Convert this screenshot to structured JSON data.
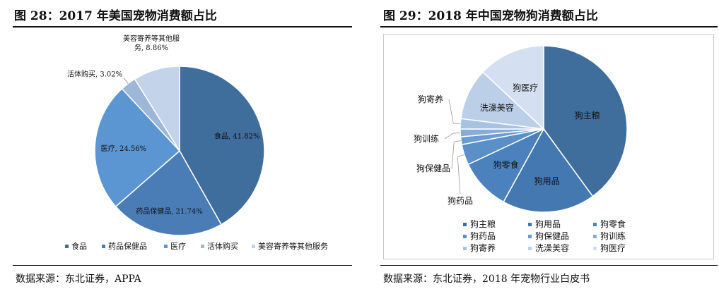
{
  "left": {
    "title": "图 28：2017 年美国宠物消费额占比",
    "source": "数据来源：东北证券，APPA",
    "chart_data": {
      "type": "pie",
      "title": "",
      "legend_position": "bottom",
      "slices": [
        {
          "name": "食品",
          "label": "食品, 41.82%",
          "value": 41.82,
          "color": "#3f6d9c"
        },
        {
          "name": "药品保健品",
          "label": "药品保健品, 21.74%",
          "value": 21.74,
          "color": "#4a7db6"
        },
        {
          "name": "医疗",
          "label": "医疗, 24.56%",
          "value": 24.56,
          "color": "#5b96d2"
        },
        {
          "name": "活体购买",
          "label": "活体购买, 3.02%",
          "value": 3.02,
          "color": "#9db7d8"
        },
        {
          "name": "美容寄养等其他服务",
          "label_line1": "美容寄养等其他服",
          "label_line2": "务, 8.86%",
          "value": 8.86,
          "color": "#c3d3ea"
        }
      ]
    }
  },
  "right": {
    "title": "图 29：2018 年中国宠物狗消费额占比",
    "source": "数据来源：东北证券，2018 年宠物行业白皮书",
    "chart_data": {
      "type": "pie",
      "title": "",
      "legend_position": "bottom",
      "slices": [
        {
          "name": "狗主粮",
          "value": 40.0,
          "color": "#3f6d9c"
        },
        {
          "name": "狗用品",
          "value": 18.0,
          "color": "#4478b0"
        },
        {
          "name": "狗零食",
          "value": 10.0,
          "color": "#4b82bd"
        },
        {
          "name": "狗药品",
          "value": 4.0,
          "color": "#5b8fc8"
        },
        {
          "name": "狗保健品",
          "value": 1.5,
          "color": "#6a9bd1"
        },
        {
          "name": "狗训练",
          "value": 1.5,
          "color": "#86acd8"
        },
        {
          "name": "狗寄养",
          "value": 2.0,
          "color": "#a8c2e2"
        },
        {
          "name": "洗澡美容",
          "value": 10.0,
          "color": "#bccfe8"
        },
        {
          "name": "狗医疗",
          "value": 13.0,
          "color": "#d4e0f1"
        }
      ]
    }
  }
}
